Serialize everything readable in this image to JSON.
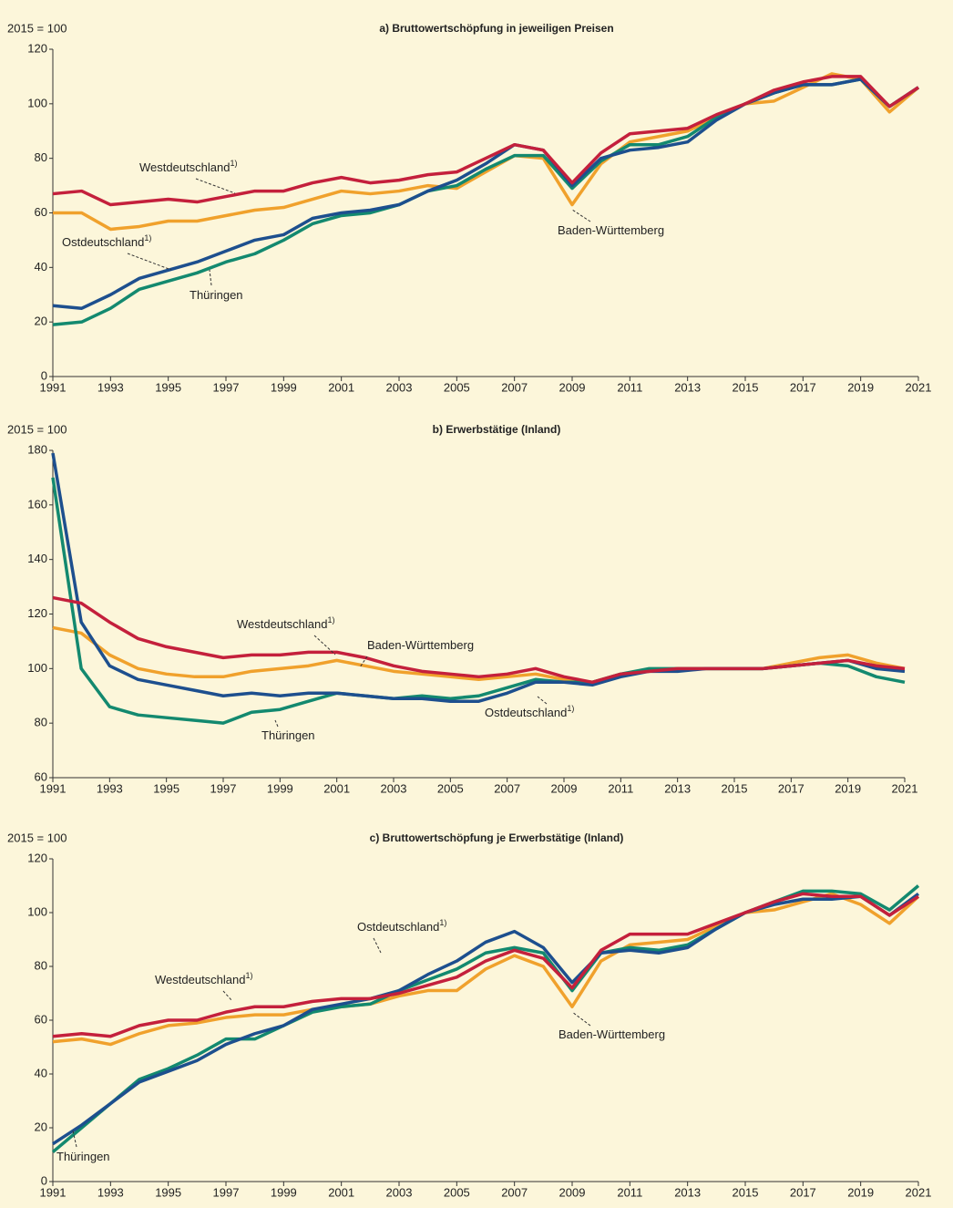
{
  "chart_data": [
    {
      "type": "line",
      "title": "a) Bruttowertschöpfung in jeweiligen Preisen",
      "ylabel": "2015 = 100",
      "x": [
        1991,
        1992,
        1993,
        1994,
        1995,
        1996,
        1997,
        1998,
        1999,
        2000,
        2001,
        2002,
        2003,
        2004,
        2005,
        2006,
        2007,
        2008,
        2009,
        2010,
        2011,
        2012,
        2013,
        2014,
        2015,
        2016,
        2017,
        2018,
        2019,
        2020,
        2021
      ],
      "xlim": [
        1991,
        2021
      ],
      "xticks": [
        1991,
        1993,
        1995,
        1997,
        1999,
        2001,
        2003,
        2005,
        2007,
        2009,
        2011,
        2013,
        2015,
        2017,
        2019,
        2021
      ],
      "ylim": [
        0,
        120
      ],
      "yticks": [
        0,
        20,
        40,
        60,
        80,
        100,
        120
      ],
      "grid": false,
      "series": [
        {
          "name": "Westdeutschland",
          "note": "1)",
          "color": "#c4203c",
          "values": [
            67,
            68,
            63,
            64,
            65,
            64,
            66,
            68,
            68,
            71,
            73,
            71,
            72,
            74,
            75,
            80,
            85,
            83,
            71,
            82,
            89,
            90,
            91,
            96,
            100,
            105,
            108,
            110,
            110,
            99,
            106
          ]
        },
        {
          "name": "Ostdeutschland",
          "note": "1)",
          "color": "#1d4f8e",
          "values": [
            26,
            25,
            30,
            36,
            39,
            42,
            46,
            50,
            52,
            58,
            60,
            61,
            63,
            68,
            72,
            78,
            85,
            83,
            70,
            80,
            83,
            84,
            86,
            94,
            100,
            104,
            107,
            107,
            109,
            99,
            106
          ]
        },
        {
          "name": "Baden-Württemberg",
          "color": "#f0a12c",
          "values": [
            60,
            60,
            54,
            55,
            57,
            57,
            59,
            61,
            62,
            65,
            68,
            67,
            68,
            70,
            69,
            75,
            81,
            80,
            63,
            78,
            86,
            88,
            90,
            95,
            100,
            101,
            106,
            111,
            109,
            97,
            106
          ]
        },
        {
          "name": "Thüringen",
          "color": "#13896f",
          "values": [
            19,
            20,
            25,
            32,
            35,
            38,
            42,
            45,
            50,
            56,
            59,
            60,
            63,
            68,
            70,
            76,
            81,
            81,
            69,
            79,
            85,
            85,
            88,
            95,
            100,
            104,
            107,
            107,
            109,
            99,
            106
          ]
        }
      ]
    },
    {
      "type": "line",
      "title": "b) Erwerbstätige (Inland)",
      "ylabel": "2015 = 100",
      "x": [
        1991,
        1992,
        1993,
        1994,
        1995,
        1996,
        1997,
        1998,
        1999,
        2000,
        2001,
        2002,
        2003,
        2004,
        2005,
        2006,
        2007,
        2008,
        2009,
        2010,
        2011,
        2012,
        2013,
        2014,
        2015,
        2016,
        2017,
        2018,
        2019,
        2020,
        2021
      ],
      "xlim": [
        1991,
        2021
      ],
      "xticks": [
        1991,
        1993,
        1995,
        1997,
        1999,
        2001,
        2003,
        2005,
        2007,
        2009,
        2011,
        2013,
        2015,
        2017,
        2019,
        2021
      ],
      "ylim": [
        60,
        180
      ],
      "yticks": [
        60,
        80,
        100,
        120,
        140,
        160,
        180
      ],
      "grid": false,
      "series": [
        {
          "name": "Westdeutschland",
          "note": "1)",
          "color": "#c4203c",
          "values": [
            126,
            124,
            117,
            111,
            108,
            106,
            104,
            105,
            105,
            106,
            106,
            104,
            101,
            99,
            98,
            97,
            98,
            100,
            97,
            95,
            98,
            99,
            100,
            100,
            100,
            100,
            101,
            102,
            103,
            101,
            100
          ]
        },
        {
          "name": "Ostdeutschland",
          "note": "1)",
          "color": "#1d4f8e",
          "values": [
            179,
            117,
            101,
            96,
            94,
            92,
            90,
            91,
            90,
            91,
            91,
            90,
            89,
            89,
            88,
            88,
            91,
            95,
            95,
            94,
            97,
            99,
            99,
            100,
            100,
            100,
            101,
            102,
            103,
            100,
            99
          ]
        },
        {
          "name": "Baden-Württemberg",
          "color": "#f0a12c",
          "values": [
            115,
            113,
            105,
            100,
            98,
            97,
            97,
            99,
            100,
            101,
            103,
            101,
            99,
            98,
            97,
            96,
            97,
            98,
            96,
            95,
            98,
            99,
            100,
            100,
            100,
            100,
            102,
            104,
            105,
            102,
            100
          ]
        },
        {
          "name": "Thüringen",
          "color": "#13896f",
          "values": [
            170,
            100,
            86,
            83,
            82,
            81,
            80,
            84,
            85,
            88,
            91,
            90,
            89,
            90,
            89,
            90,
            93,
            96,
            95,
            95,
            98,
            100,
            100,
            100,
            100,
            100,
            101,
            102,
            101,
            97,
            95
          ]
        }
      ]
    },
    {
      "type": "line",
      "title": "c) Bruttowertschöpfung je Erwerbstätige (Inland)",
      "ylabel": "2015 = 100",
      "x": [
        1991,
        1992,
        1993,
        1994,
        1995,
        1996,
        1997,
        1998,
        1999,
        2000,
        2001,
        2002,
        2003,
        2004,
        2005,
        2006,
        2007,
        2008,
        2009,
        2010,
        2011,
        2012,
        2013,
        2014,
        2015,
        2016,
        2017,
        2018,
        2019,
        2020,
        2021
      ],
      "xlim": [
        1991,
        2021
      ],
      "xticks": [
        1991,
        1993,
        1995,
        1997,
        1999,
        2001,
        2003,
        2005,
        2007,
        2009,
        2011,
        2013,
        2015,
        2017,
        2019,
        2021
      ],
      "ylim": [
        0,
        120
      ],
      "yticks": [
        0,
        20,
        40,
        60,
        80,
        100,
        120
      ],
      "grid": false,
      "series": [
        {
          "name": "Westdeutschland",
          "note": "1)",
          "color": "#c4203c",
          "values": [
            54,
            55,
            54,
            58,
            60,
            60,
            63,
            65,
            65,
            67,
            68,
            68,
            70,
            73,
            76,
            82,
            86,
            83,
            72,
            86,
            92,
            92,
            92,
            96,
            100,
            104,
            107,
            106,
            106,
            99,
            106
          ]
        },
        {
          "name": "Ostdeutschland",
          "note": "1)",
          "color": "#1d4f8e",
          "values": [
            14,
            21,
            29,
            37,
            41,
            45,
            51,
            55,
            58,
            64,
            66,
            68,
            71,
            77,
            82,
            89,
            93,
            87,
            74,
            85,
            86,
            85,
            87,
            94,
            100,
            103,
            105,
            105,
            106,
            99,
            107
          ]
        },
        {
          "name": "Baden-Württemberg",
          "color": "#f0a12c",
          "values": [
            52,
            53,
            51,
            55,
            58,
            59,
            61,
            62,
            62,
            64,
            65,
            66,
            69,
            71,
            71,
            79,
            84,
            80,
            65,
            82,
            88,
            89,
            90,
            95,
            100,
            101,
            104,
            107,
            103,
            96,
            106
          ]
        },
        {
          "name": "Thüringen",
          "color": "#13896f",
          "values": [
            11,
            20,
            29,
            38,
            42,
            47,
            53,
            53,
            58,
            63,
            65,
            66,
            71,
            75,
            79,
            85,
            87,
            85,
            71,
            85,
            87,
            86,
            88,
            94,
            100,
            104,
            108,
            108,
            107,
            101,
            110
          ]
        }
      ]
    }
  ]
}
